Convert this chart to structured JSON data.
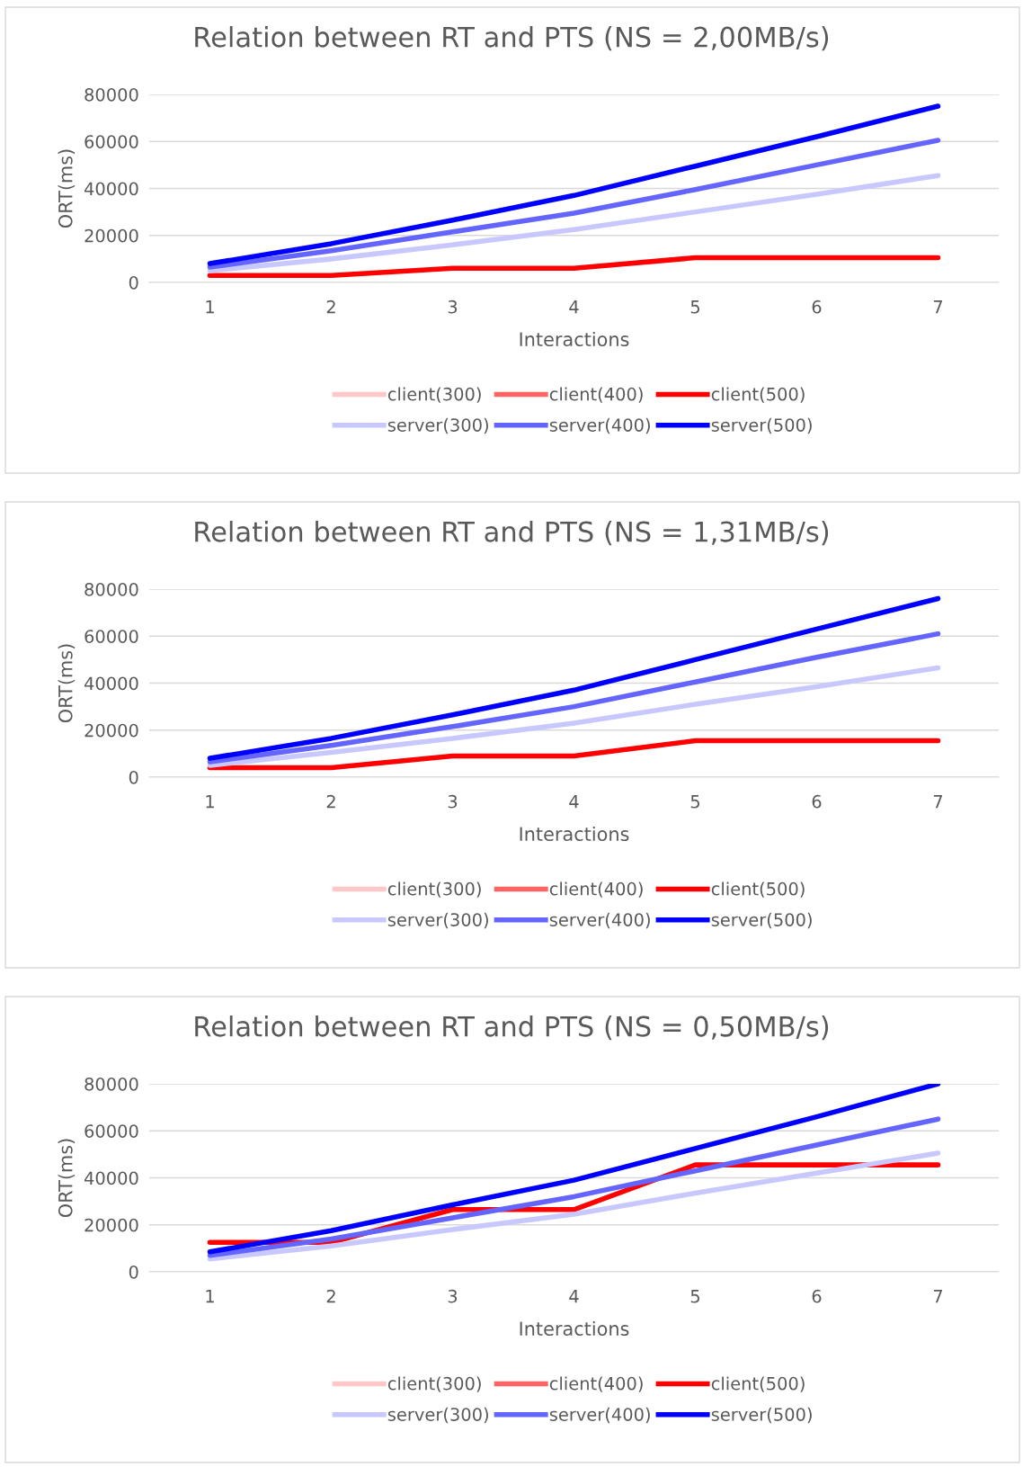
{
  "chart_data": [
    {
      "type": "line",
      "title": "Relation between RT and PTS (NS = 2,00MB/s)",
      "xlabel": "Interactions",
      "ylabel": "ORT(ms)",
      "categories": [
        "1",
        "2",
        "3",
        "4",
        "5",
        "6",
        "7"
      ],
      "ylim": [
        0,
        80000
      ],
      "yticks": [
        0,
        20000,
        40000,
        60000,
        80000
      ],
      "grid": "y",
      "legend": "bottom",
      "line_style": "solid",
      "marker": "none",
      "series": [
        {
          "name": "client(300)",
          "color": "#ffc8c8",
          "values": [
            null,
            null,
            null,
            null,
            null,
            null,
            null
          ]
        },
        {
          "name": "client(400)",
          "color": "#ff6464",
          "values": [
            null,
            null,
            null,
            null,
            null,
            null,
            null
          ]
        },
        {
          "name": "client(500)",
          "color": "#ff0000",
          "values": [
            3000,
            3000,
            6000,
            6000,
            10500,
            10500,
            10500
          ]
        },
        {
          "name": "server(300)",
          "color": "#c8c8ff",
          "values": [
            5000,
            10000,
            16000,
            22500,
            30000,
            37500,
            45500
          ]
        },
        {
          "name": "server(400)",
          "color": "#6464ff",
          "values": [
            6500,
            13500,
            21500,
            29500,
            39500,
            50000,
            60500
          ]
        },
        {
          "name": "server(500)",
          "color": "#0000ff",
          "values": [
            8000,
            16500,
            26500,
            37000,
            49500,
            62000,
            75000
          ]
        }
      ]
    },
    {
      "type": "line",
      "title": "Relation between RT and PTS (NS = 1,31MB/s)",
      "xlabel": "Interactions",
      "ylabel": "ORT(ms)",
      "categories": [
        "1",
        "2",
        "3",
        "4",
        "5",
        "6",
        "7"
      ],
      "ylim": [
        0,
        80000
      ],
      "yticks": [
        0,
        20000,
        40000,
        60000,
        80000
      ],
      "grid": "y",
      "legend": "bottom",
      "line_style": "solid",
      "marker": "none",
      "series": [
        {
          "name": "client(300)",
          "color": "#ffc8c8",
          "values": [
            null,
            null,
            null,
            null,
            null,
            null,
            null
          ]
        },
        {
          "name": "client(400)",
          "color": "#ff6464",
          "values": [
            null,
            null,
            null,
            null,
            null,
            null,
            null
          ]
        },
        {
          "name": "client(500)",
          "color": "#ff0000",
          "values": [
            4000,
            4000,
            9000,
            9000,
            15500,
            15500,
            15500
          ]
        },
        {
          "name": "server(300)",
          "color": "#c8c8ff",
          "values": [
            5000,
            10500,
            16500,
            23000,
            31000,
            38500,
            46500
          ]
        },
        {
          "name": "server(400)",
          "color": "#6464ff",
          "values": [
            6500,
            13500,
            21500,
            30000,
            40500,
            51000,
            61000
          ]
        },
        {
          "name": "server(500)",
          "color": "#0000ff",
          "values": [
            8000,
            16500,
            26500,
            37000,
            50000,
            63000,
            76000
          ]
        }
      ]
    },
    {
      "type": "line",
      "title": "Relation between RT and PTS (NS = 0,50MB/s)",
      "xlabel": "Interactions",
      "ylabel": "ORT(ms)",
      "categories": [
        "1",
        "2",
        "3",
        "4",
        "5",
        "6",
        "7"
      ],
      "ylim": [
        0,
        80000
      ],
      "yticks": [
        0,
        20000,
        40000,
        60000,
        80000
      ],
      "grid": "y",
      "legend": "bottom",
      "line_style": "solid",
      "marker": "none",
      "series": [
        {
          "name": "client(300)",
          "color": "#ffc8c8",
          "values": [
            null,
            null,
            null,
            null,
            null,
            null,
            null
          ]
        },
        {
          "name": "client(400)",
          "color": "#ff6464",
          "values": [
            null,
            null,
            null,
            null,
            null,
            null,
            null
          ]
        },
        {
          "name": "client(500)",
          "color": "#ff0000",
          "values": [
            12500,
            12500,
            26500,
            26500,
            45500,
            45500,
            45500
          ]
        },
        {
          "name": "server(300)",
          "color": "#c8c8ff",
          "values": [
            5500,
            11000,
            18000,
            24500,
            33500,
            42000,
            50500
          ]
        },
        {
          "name": "server(400)",
          "color": "#6464ff",
          "values": [
            7000,
            14000,
            23000,
            32000,
            43000,
            54000,
            65000
          ]
        },
        {
          "name": "server(500)",
          "color": "#0000ff",
          "values": [
            8500,
            17500,
            28500,
            39000,
            52500,
            66000,
            80000
          ]
        }
      ]
    }
  ]
}
